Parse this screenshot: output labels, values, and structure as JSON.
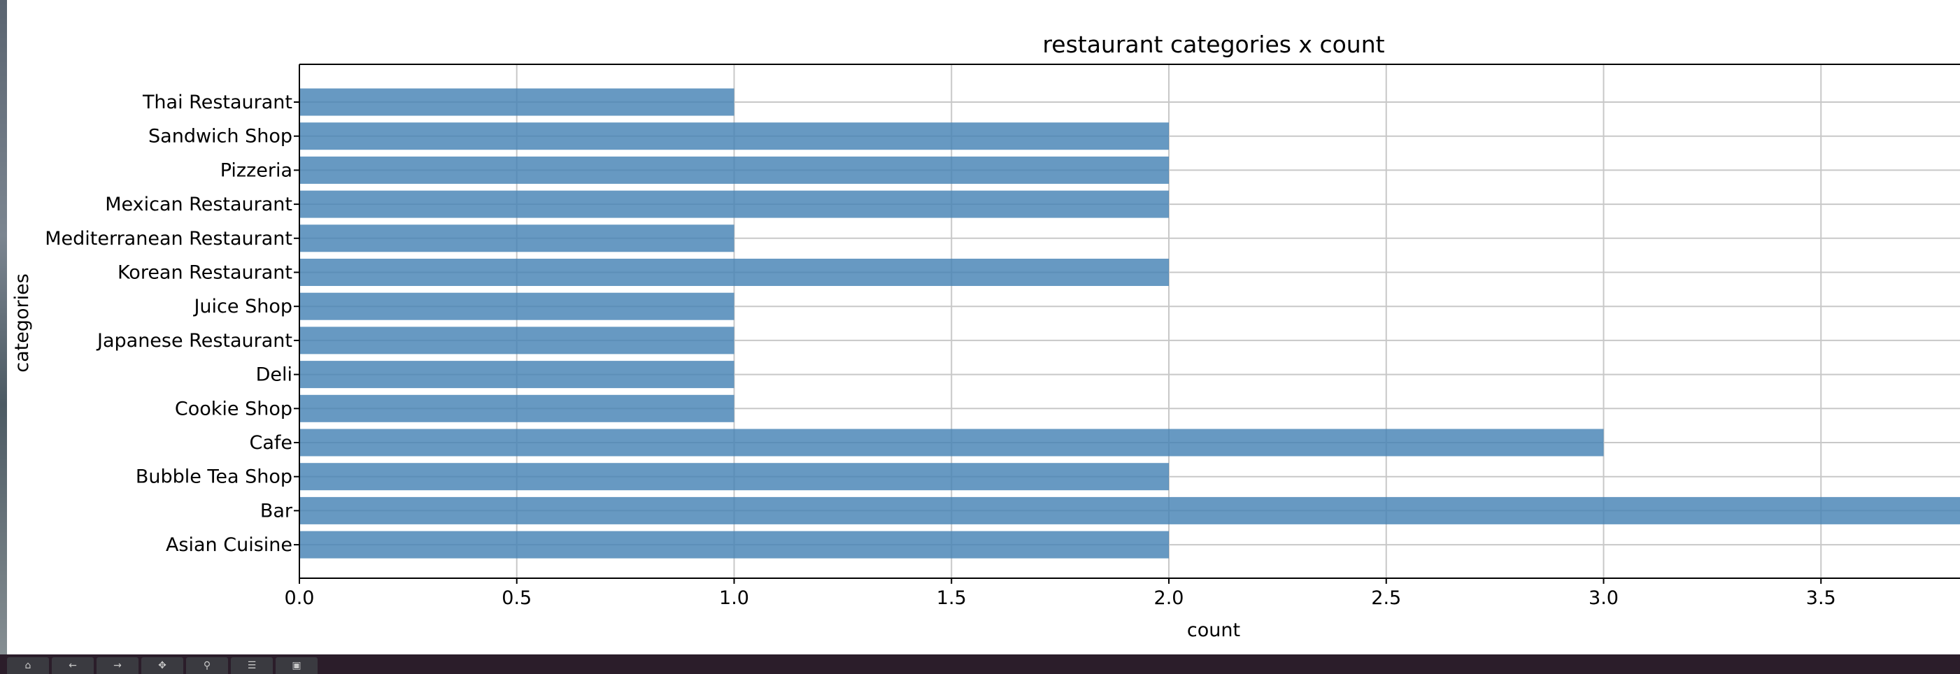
{
  "chart_data": {
    "type": "bar",
    "orientation": "horizontal",
    "title": "restaurant categories x count",
    "xlabel": "count",
    "ylabel": "categories",
    "categories": [
      "Asian Cuisine ",
      "Bar",
      "Bubble Tea Shop",
      "Cafe",
      "Cookie Shop",
      "Deli",
      "Japanese Restaurant",
      "Juice Shop",
      "Korean Restaurant",
      "Mediterranean Restaurant",
      "Mexican Restaurant",
      "Pizzeria",
      "Sandwich Shop",
      "Thai Restaurant"
    ],
    "values": [
      2,
      4,
      2,
      3,
      1,
      1,
      1,
      1,
      2,
      1,
      2,
      2,
      2,
      1
    ],
    "xticks": [
      "0.0",
      "0.5",
      "1.0",
      "1.5",
      "2.0",
      "2.5",
      "3.0",
      "3.5"
    ],
    "xlim": [
      0,
      4.2
    ],
    "grid": true,
    "bar_color": "#4682b4",
    "grid_color": "#c8c8c8"
  },
  "toolbar": {
    "buttons": [
      {
        "icon": "home-icon",
        "glyph": "⌂"
      },
      {
        "icon": "back-arrow-icon",
        "glyph": "←"
      },
      {
        "icon": "forward-arrow-icon",
        "glyph": "→"
      },
      {
        "icon": "pan-icon",
        "glyph": "✥"
      },
      {
        "icon": "zoom-icon",
        "glyph": "⚲"
      },
      {
        "icon": "configure-icon",
        "glyph": "☰"
      },
      {
        "icon": "save-icon",
        "glyph": "▣"
      }
    ]
  }
}
